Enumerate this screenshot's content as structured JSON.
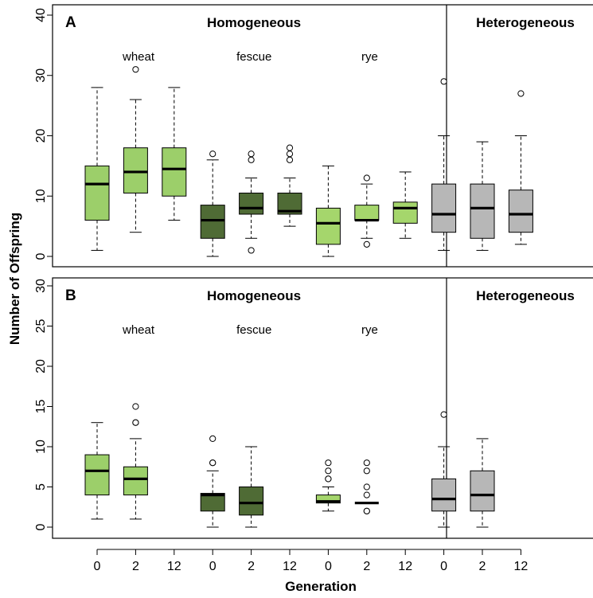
{
  "chart_data": {
    "type": "boxplot",
    "xlabel": "Generation",
    "ylabel": "Number of Offspring",
    "colors": {
      "wheat": "#9ccf6a",
      "fescue": "#4f6b35",
      "rye": "#a5d66c",
      "heterogeneous": "#b7b7b7"
    },
    "panels": [
      {
        "letter": "A",
        "ylim": [
          0,
          40
        ],
        "yticks": [
          "0",
          "10",
          "20",
          "30",
          "40"
        ],
        "yticks_values": [
          0,
          10,
          20,
          30,
          40
        ],
        "left_title": "Homogeneous",
        "right_title": "Heterogeneous",
        "group_labels": [
          {
            "text": "wheat",
            "at": 1
          },
          {
            "text": "fescue",
            "at": 4
          },
          {
            "text": "rye",
            "at": 7
          }
        ],
        "boxes": [
          {
            "pos": 1,
            "group": "wheat",
            "whislo": 1,
            "q1": 6,
            "med": 12,
            "q3": 15,
            "whishi": 28,
            "outliers": []
          },
          {
            "pos": 2,
            "group": "wheat",
            "whislo": 4,
            "q1": 10.5,
            "med": 14,
            "q3": 18,
            "whishi": 26,
            "outliers": [
              31
            ]
          },
          {
            "pos": 3,
            "group": "wheat",
            "whislo": 6,
            "q1": 10,
            "med": 14.5,
            "q3": 18,
            "whishi": 28,
            "outliers": []
          },
          {
            "pos": 4,
            "group": "fescue",
            "whislo": 0,
            "q1": 3,
            "med": 6,
            "q3": 8.5,
            "whishi": 16,
            "outliers": [
              17
            ]
          },
          {
            "pos": 5,
            "group": "fescue",
            "whislo": 3,
            "q1": 7,
            "med": 8,
            "q3": 10.5,
            "whishi": 13,
            "outliers": [
              1,
              16,
              17
            ]
          },
          {
            "pos": 6,
            "group": "fescue",
            "whislo": 5,
            "q1": 7,
            "med": 7.5,
            "q3": 10.5,
            "whishi": 13,
            "outliers": [
              16,
              17,
              18
            ]
          },
          {
            "pos": 7,
            "group": "rye",
            "whislo": 0,
            "q1": 2,
            "med": 5.5,
            "q3": 8,
            "whishi": 15,
            "outliers": []
          },
          {
            "pos": 8,
            "group": "rye",
            "whislo": 3,
            "q1": 6,
            "med": 6,
            "q3": 8.5,
            "whishi": 12,
            "outliers": [
              2,
              13
            ]
          },
          {
            "pos": 9,
            "group": "rye",
            "whislo": 3,
            "q1": 5.5,
            "med": 8,
            "q3": 9,
            "whishi": 14,
            "outliers": []
          },
          {
            "pos": 10,
            "group": "heterogeneous",
            "whislo": 1,
            "q1": 4,
            "med": 7,
            "q3": 12,
            "whishi": 20,
            "outliers": [
              29
            ]
          },
          {
            "pos": 11,
            "group": "heterogeneous",
            "whislo": 1,
            "q1": 3,
            "med": 8,
            "q3": 12,
            "whishi": 19,
            "outliers": []
          },
          {
            "pos": 12,
            "group": "heterogeneous",
            "whislo": 2,
            "q1": 4,
            "med": 7,
            "q3": 11,
            "whishi": 20,
            "outliers": [
              27
            ]
          }
        ]
      },
      {
        "letter": "B",
        "ylim": [
          0,
          30
        ],
        "yticks": [
          "0",
          "5",
          "10",
          "15",
          "20",
          "25",
          "30"
        ],
        "yticks_values": [
          0,
          5,
          10,
          15,
          20,
          25,
          30
        ],
        "left_title": "Homogeneous",
        "right_title": "Heterogeneous",
        "group_labels": [
          {
            "text": "wheat",
            "at": 1
          },
          {
            "text": "fescue",
            "at": 4
          },
          {
            "text": "rye",
            "at": 7
          }
        ],
        "boxes": [
          {
            "pos": 1,
            "group": "wheat",
            "whislo": 1,
            "q1": 4,
            "med": 7,
            "q3": 9,
            "whishi": 13,
            "outliers": []
          },
          {
            "pos": 2,
            "group": "wheat",
            "whislo": 1,
            "q1": 4,
            "med": 6,
            "q3": 7.5,
            "whishi": 11,
            "outliers": [
              13,
              13,
              15
            ]
          },
          {
            "pos": 4,
            "group": "fescue",
            "whislo": 0,
            "q1": 2,
            "med": 4,
            "q3": 4.2,
            "whishi": 7,
            "outliers": [
              8,
              8,
              11
            ]
          },
          {
            "pos": 5,
            "group": "fescue",
            "whislo": 0,
            "q1": 1.5,
            "med": 3,
            "q3": 5,
            "whishi": 10,
            "outliers": []
          },
          {
            "pos": 7,
            "group": "rye",
            "whislo": 2,
            "q1": 3,
            "med": 3.2,
            "q3": 4,
            "whishi": 5,
            "outliers": [
              6,
              6,
              7,
              8
            ]
          },
          {
            "pos": 8,
            "group": "rye",
            "whislo": 3,
            "q1": 3,
            "med": 3,
            "q3": 3,
            "whishi": 3,
            "outliers": [
              2,
              2,
              4,
              5,
              7,
              8
            ]
          },
          {
            "pos": 10,
            "group": "heterogeneous",
            "whislo": 0,
            "q1": 2,
            "med": 3.5,
            "q3": 6,
            "whishi": 10,
            "outliers": [
              14
            ]
          },
          {
            "pos": 11,
            "group": "heterogeneous",
            "whislo": 0,
            "q1": 2,
            "med": 4,
            "q3": 7,
            "whishi": 11,
            "outliers": []
          }
        ]
      }
    ],
    "x_tick_positions": [
      1,
      2,
      3,
      4,
      5,
      6,
      7,
      8,
      9,
      10,
      11,
      12
    ],
    "x_tick_labels": [
      "0",
      "2",
      "12",
      "0",
      "2",
      "12",
      "0",
      "2",
      "12",
      "0",
      "2",
      "12"
    ]
  }
}
